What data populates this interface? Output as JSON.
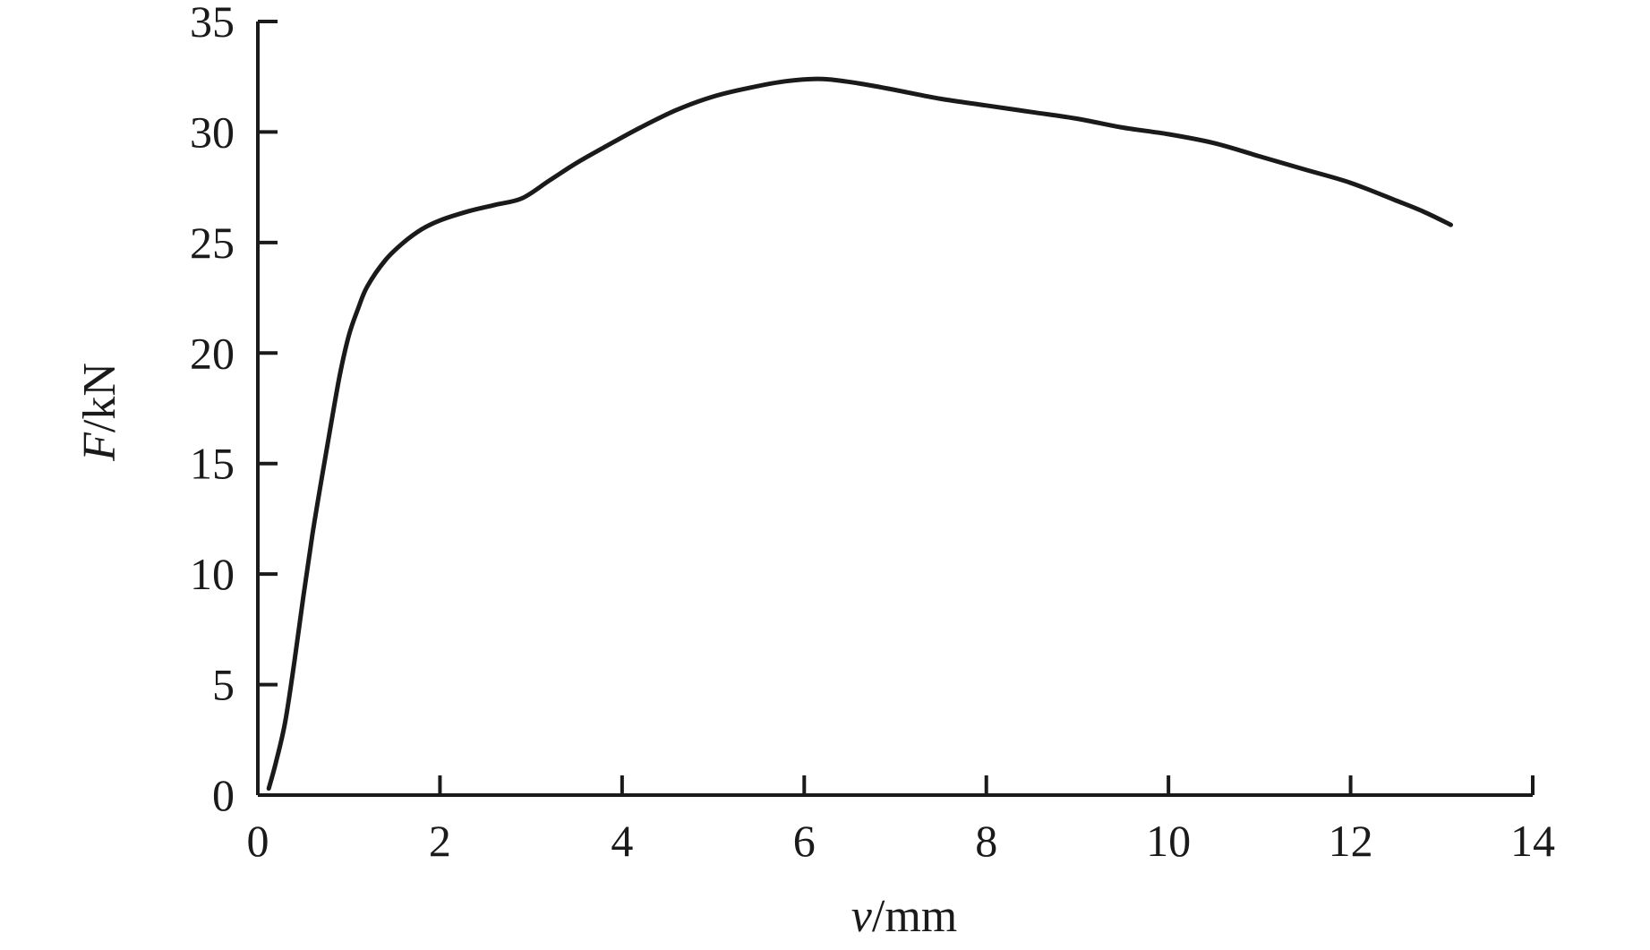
{
  "chart_data": {
    "type": "line",
    "title": "",
    "xlabel": {
      "var": "v",
      "unit": "/mm"
    },
    "ylabel": {
      "var": "F",
      "unit": "/kN"
    },
    "xlim": [
      0,
      14
    ],
    "ylim": [
      0,
      35
    ],
    "x_ticks": [
      0,
      2,
      4,
      6,
      8,
      10,
      12,
      14
    ],
    "y_ticks": [
      0,
      5,
      10,
      15,
      20,
      25,
      30,
      35
    ],
    "x_tick_labels": [
      "0",
      "2",
      "4",
      "6",
      "8",
      "10",
      "12",
      "14"
    ],
    "y_tick_labels": [
      "0",
      "5",
      "10",
      "15",
      "20",
      "25",
      "30",
      "35"
    ],
    "grid": false,
    "legend": "none",
    "line_color": "#1a1a1a",
    "series": [
      {
        "x": [
          0.12,
          0.2,
          0.3,
          0.4,
          0.5,
          0.6,
          0.7,
          0.8,
          0.9,
          1.0,
          1.1,
          1.2,
          1.4,
          1.6,
          1.8,
          2.0,
          2.3,
          2.6,
          2.9,
          3.2,
          3.5,
          3.8,
          4.2,
          4.6,
          5.0,
          5.4,
          5.8,
          6.2,
          6.6,
          7.0,
          7.5,
          8.0,
          8.5,
          9.0,
          9.5,
          10.0,
          10.5,
          11.0,
          11.5,
          12.0,
          12.5,
          12.8,
          13.1
        ],
        "y": [
          0.3,
          1.5,
          3.3,
          6.0,
          9.0,
          11.8,
          14.3,
          16.7,
          19.0,
          20.8,
          22.0,
          23.0,
          24.2,
          25.0,
          25.6,
          26.0,
          26.4,
          26.7,
          27.0,
          27.8,
          28.6,
          29.3,
          30.2,
          31.0,
          31.6,
          32.0,
          32.3,
          32.4,
          32.2,
          31.9,
          31.5,
          31.2,
          30.9,
          30.6,
          30.2,
          29.9,
          29.5,
          28.9,
          28.3,
          27.7,
          26.9,
          26.4,
          25.8
        ]
      }
    ]
  }
}
